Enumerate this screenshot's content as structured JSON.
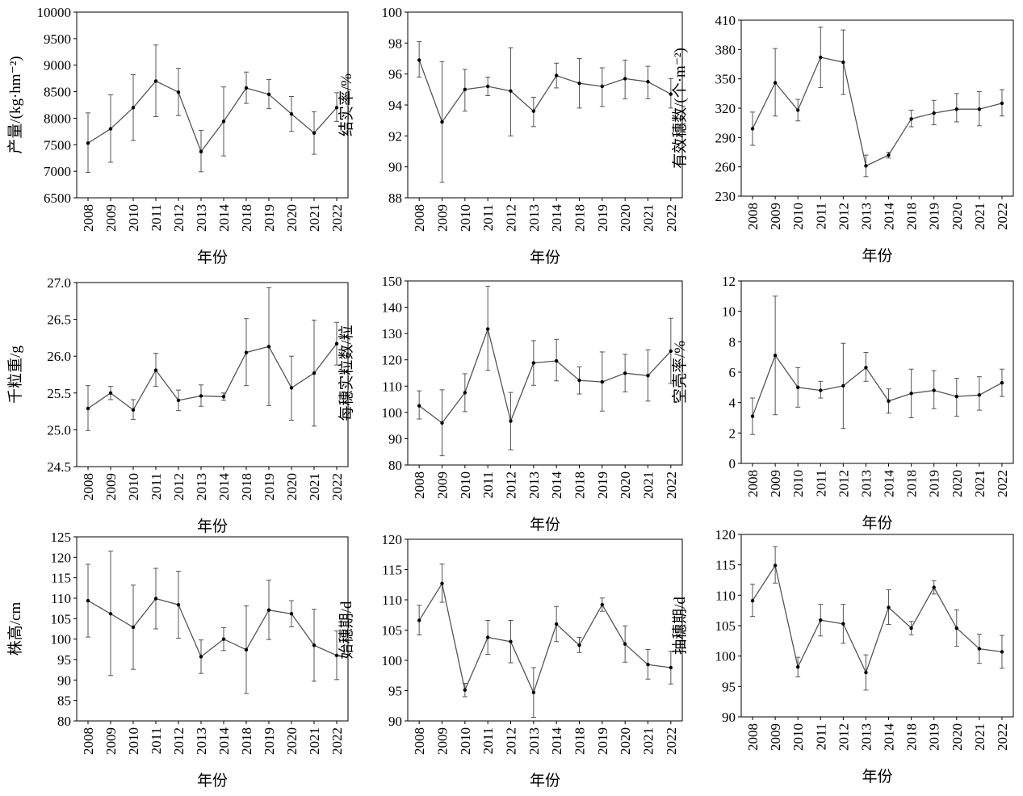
{
  "figure": {
    "xlabel": "年份",
    "years": [
      "2008",
      "2009",
      "2010",
      "2011",
      "2012",
      "2013",
      "2014",
      "2018",
      "2019",
      "2020",
      "2021",
      "2022"
    ],
    "line_color": "#555555",
    "marker_color": "#000000"
  },
  "chart_data": [
    {
      "type": "line",
      "ylabel": "产量/(kg·hm⁻²)",
      "xlabel": "年份",
      "ylim": [
        6500,
        10000
      ],
      "yticks": [
        6500,
        7000,
        7500,
        8000,
        8500,
        9000,
        9500,
        10000
      ],
      "x": [
        "2008",
        "2009",
        "2010",
        "2011",
        "2012",
        "2013",
        "2014",
        "2018",
        "2019",
        "2020",
        "2021",
        "2022"
      ],
      "values": [
        7530,
        7800,
        8200,
        8700,
        8490,
        7370,
        7940,
        8570,
        8450,
        8080,
        7720,
        8200
      ],
      "error_low": [
        6980,
        7170,
        7580,
        8030,
        8050,
        6990,
        7290,
        8280,
        8180,
        7750,
        7320,
        7940
      ],
      "error_high": [
        8100,
        8440,
        8820,
        9380,
        8940,
        7770,
        8590,
        8870,
        8730,
        8410,
        8120,
        8480
      ]
    },
    {
      "type": "line",
      "ylabel": "结实率/%",
      "xlabel": "年份",
      "ylim": [
        88,
        100
      ],
      "yticks": [
        88,
        90,
        92,
        94,
        96,
        98,
        100
      ],
      "x": [
        "2008",
        "2009",
        "2010",
        "2011",
        "2012",
        "2013",
        "2014",
        "2018",
        "2019",
        "2020",
        "2021",
        "2022"
      ],
      "values": [
        96.9,
        92.9,
        95.0,
        95.2,
        94.9,
        93.6,
        95.9,
        95.4,
        95.2,
        95.7,
        95.5,
        94.7
      ],
      "error_low": [
        95.8,
        89.0,
        93.6,
        94.6,
        92.0,
        92.6,
        95.1,
        93.8,
        93.9,
        94.4,
        94.4,
        93.8
      ],
      "error_high": [
        98.1,
        96.8,
        96.3,
        95.8,
        97.7,
        94.5,
        96.7,
        97.0,
        96.4,
        96.9,
        96.5,
        95.7
      ]
    },
    {
      "type": "line",
      "ylabel": "有效穗数/(个·m⁻²)",
      "xlabel": "年份",
      "ylim": [
        230,
        410
      ],
      "yticks": [
        230,
        260,
        290,
        320,
        350,
        380,
        410
      ],
      "x": [
        "2008",
        "2009",
        "2010",
        "2011",
        "2012",
        "2013",
        "2014",
        "2018",
        "2019",
        "2020",
        "2021",
        "2022"
      ],
      "values": [
        299,
        346,
        318,
        372,
        367,
        261,
        272,
        309,
        315,
        319,
        319,
        325
      ],
      "error_low": [
        282,
        312,
        307,
        341,
        334,
        250,
        269,
        301,
        303,
        306,
        302,
        312
      ],
      "error_high": [
        316,
        381,
        329,
        403,
        400,
        272,
        275,
        318,
        328,
        335,
        337,
        339
      ]
    },
    {
      "type": "line",
      "ylabel": "千粒重/g",
      "xlabel": "年份",
      "ylim": [
        24.5,
        27.0
      ],
      "yticks": [
        "24.5",
        "25.0",
        "25.5",
        "26.0",
        "26.5",
        "27.0"
      ],
      "x": [
        "2008",
        "2009",
        "2010",
        "2011",
        "2012",
        "2013",
        "2014",
        "2018",
        "2019",
        "2020",
        "2021",
        "2022"
      ],
      "values": [
        25.29,
        25.5,
        25.27,
        25.81,
        25.4,
        25.46,
        25.45,
        26.05,
        26.13,
        25.57,
        25.77,
        26.17
      ],
      "error_low": [
        24.99,
        25.41,
        25.14,
        25.59,
        25.26,
        25.32,
        25.4,
        25.6,
        25.33,
        25.13,
        25.05,
        25.88
      ],
      "error_high": [
        25.6,
        25.59,
        25.41,
        26.04,
        25.54,
        25.61,
        25.5,
        26.51,
        26.93,
        26.0,
        26.49,
        26.46
      ]
    },
    {
      "type": "line",
      "ylabel": "每穗实粒数/粒",
      "xlabel": "年份",
      "ylim": [
        80,
        150
      ],
      "yticks": [
        80,
        90,
        100,
        110,
        120,
        130,
        140,
        150
      ],
      "x": [
        "2008",
        "2009",
        "2010",
        "2011",
        "2012",
        "2013",
        "2014",
        "2018",
        "2019",
        "2020",
        "2021",
        "2022"
      ],
      "values": [
        102.5,
        96.0,
        107.5,
        131.7,
        96.7,
        118.8,
        119.6,
        112.2,
        111.6,
        114.9,
        114.0,
        123.3
      ],
      "error_low": [
        97.5,
        83.5,
        100.3,
        116.0,
        85.8,
        110.3,
        112.0,
        107.0,
        100.5,
        107.8,
        104.3,
        111.0
      ],
      "error_high": [
        108.2,
        108.6,
        114.7,
        148.0,
        107.6,
        127.3,
        127.8,
        117.3,
        123.0,
        122.1,
        123.8,
        135.8
      ]
    },
    {
      "type": "line",
      "ylabel": "空壳率/%",
      "xlabel": "年份",
      "ylim": [
        0,
        12
      ],
      "yticks": [
        0,
        2,
        4,
        6,
        8,
        10,
        12
      ],
      "x": [
        "2008",
        "2009",
        "2010",
        "2011",
        "2012",
        "2013",
        "2014",
        "2018",
        "2019",
        "2020",
        "2021",
        "2022"
      ],
      "values": [
        3.1,
        7.1,
        5.0,
        4.8,
        5.1,
        6.3,
        4.1,
        4.6,
        4.8,
        4.4,
        4.5,
        5.3
      ],
      "error_low": [
        1.9,
        3.2,
        3.7,
        4.3,
        2.3,
        5.4,
        3.3,
        3.0,
        3.6,
        3.1,
        3.5,
        4.4
      ],
      "error_high": [
        4.3,
        11.0,
        6.3,
        5.4,
        7.9,
        7.3,
        4.9,
        6.2,
        6.1,
        5.6,
        5.7,
        6.2
      ]
    },
    {
      "type": "line",
      "ylabel": "株高/cm",
      "xlabel": "年份",
      "ylim": [
        80,
        125
      ],
      "yticks": [
        80,
        85,
        90,
        95,
        100,
        105,
        110,
        115,
        120,
        125
      ],
      "x": [
        "2008",
        "2009",
        "2010",
        "2011",
        "2012",
        "2013",
        "2014",
        "2018",
        "2019",
        "2020",
        "2021",
        "2022"
      ],
      "values": [
        109.4,
        106.2,
        102.9,
        109.9,
        108.4,
        95.7,
        100.0,
        97.4,
        107.1,
        106.2,
        98.5,
        96.0
      ],
      "error_low": [
        100.5,
        91.1,
        92.6,
        102.5,
        100.2,
        91.6,
        97.2,
        86.7,
        99.9,
        103.0,
        89.7,
        90.1
      ],
      "error_high": [
        118.3,
        121.5,
        113.2,
        117.3,
        116.6,
        99.8,
        102.8,
        108.1,
        114.4,
        109.4,
        107.3,
        102.0
      ]
    },
    {
      "type": "line",
      "ylabel": "始穗期/d",
      "xlabel": "年份",
      "ylim": [
        90,
        120
      ],
      "yticks": [
        90,
        95,
        100,
        105,
        110,
        115,
        120
      ],
      "x": [
        "2008",
        "2009",
        "2010",
        "2011",
        "2012",
        "2013",
        "2014",
        "2018",
        "2019",
        "2020",
        "2021",
        "2022"
      ],
      "values": [
        106.6,
        112.7,
        95.1,
        103.8,
        103.1,
        94.7,
        106.0,
        102.5,
        109.2,
        102.7,
        99.3,
        98.8
      ],
      "error_low": [
        104.2,
        109.6,
        94.0,
        101.0,
        99.6,
        90.6,
        103.1,
        101.3,
        108.1,
        99.7,
        96.9,
        96.1
      ],
      "error_high": [
        109.1,
        115.9,
        96.2,
        106.6,
        106.6,
        98.8,
        108.9,
        103.8,
        110.3,
        105.7,
        101.8,
        101.5
      ]
    },
    {
      "type": "line",
      "ylabel": "抽穗期/d",
      "xlabel": "年份",
      "ylim": [
        90,
        120
      ],
      "yticks": [
        90,
        95,
        100,
        105,
        110,
        115,
        120
      ],
      "x": [
        "2008",
        "2009",
        "2010",
        "2011",
        "2012",
        "2013",
        "2014",
        "2018",
        "2019",
        "2020",
        "2021",
        "2022"
      ],
      "values": [
        109.1,
        114.9,
        98.2,
        105.9,
        105.3,
        97.3,
        108.0,
        104.6,
        111.3,
        104.6,
        101.2,
        100.7
      ],
      "error_low": [
        106.5,
        112.0,
        96.6,
        103.3,
        102.1,
        94.4,
        105.2,
        103.5,
        110.2,
        101.6,
        98.8,
        98.0
      ],
      "error_high": [
        111.8,
        118.0,
        99.8,
        108.5,
        108.5,
        100.2,
        110.9,
        105.7,
        112.4,
        107.6,
        103.6,
        103.4
      ]
    }
  ]
}
